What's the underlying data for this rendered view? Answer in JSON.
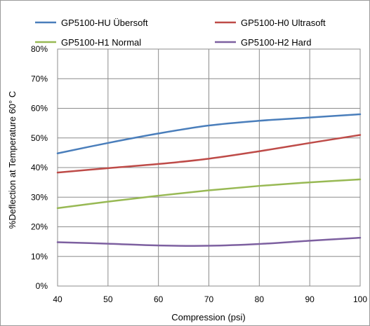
{
  "chart_data": {
    "type": "line",
    "title": "",
    "xlabel": "Compression (psi)",
    "ylabel": "%Deflection at Temperature 60° C",
    "x": [
      40,
      50,
      60,
      70,
      80,
      90,
      100
    ],
    "xlim": [
      40,
      100
    ],
    "ylim": [
      0,
      80
    ],
    "x_ticks": [
      "40",
      "50",
      "60",
      "70",
      "80",
      "90",
      "100"
    ],
    "y_ticks": [
      "0%",
      "10%",
      "20%",
      "30%",
      "40%",
      "50%",
      "60%",
      "70%",
      "80%"
    ],
    "grid": true,
    "legend_position": "top",
    "series": [
      {
        "name": "GP5100-HU Übersoft",
        "color": "#4a7ebb",
        "values": [
          44.8,
          48.3,
          51.5,
          54.2,
          55.8,
          56.9,
          58.0
        ]
      },
      {
        "name": "GP5100-H0 Ultrasoft",
        "color": "#be4b48",
        "values": [
          38.3,
          39.8,
          41.2,
          43.0,
          45.5,
          48.3,
          51.0
        ]
      },
      {
        "name": "GP5100-H1 Normal",
        "color": "#98b954",
        "values": [
          26.3,
          28.5,
          30.5,
          32.3,
          33.8,
          35.0,
          36.0
        ]
      },
      {
        "name": "GP5100-H2 Hard",
        "color": "#7d60a0",
        "values": [
          14.8,
          14.3,
          13.7,
          13.6,
          14.2,
          15.3,
          16.3
        ]
      }
    ]
  }
}
